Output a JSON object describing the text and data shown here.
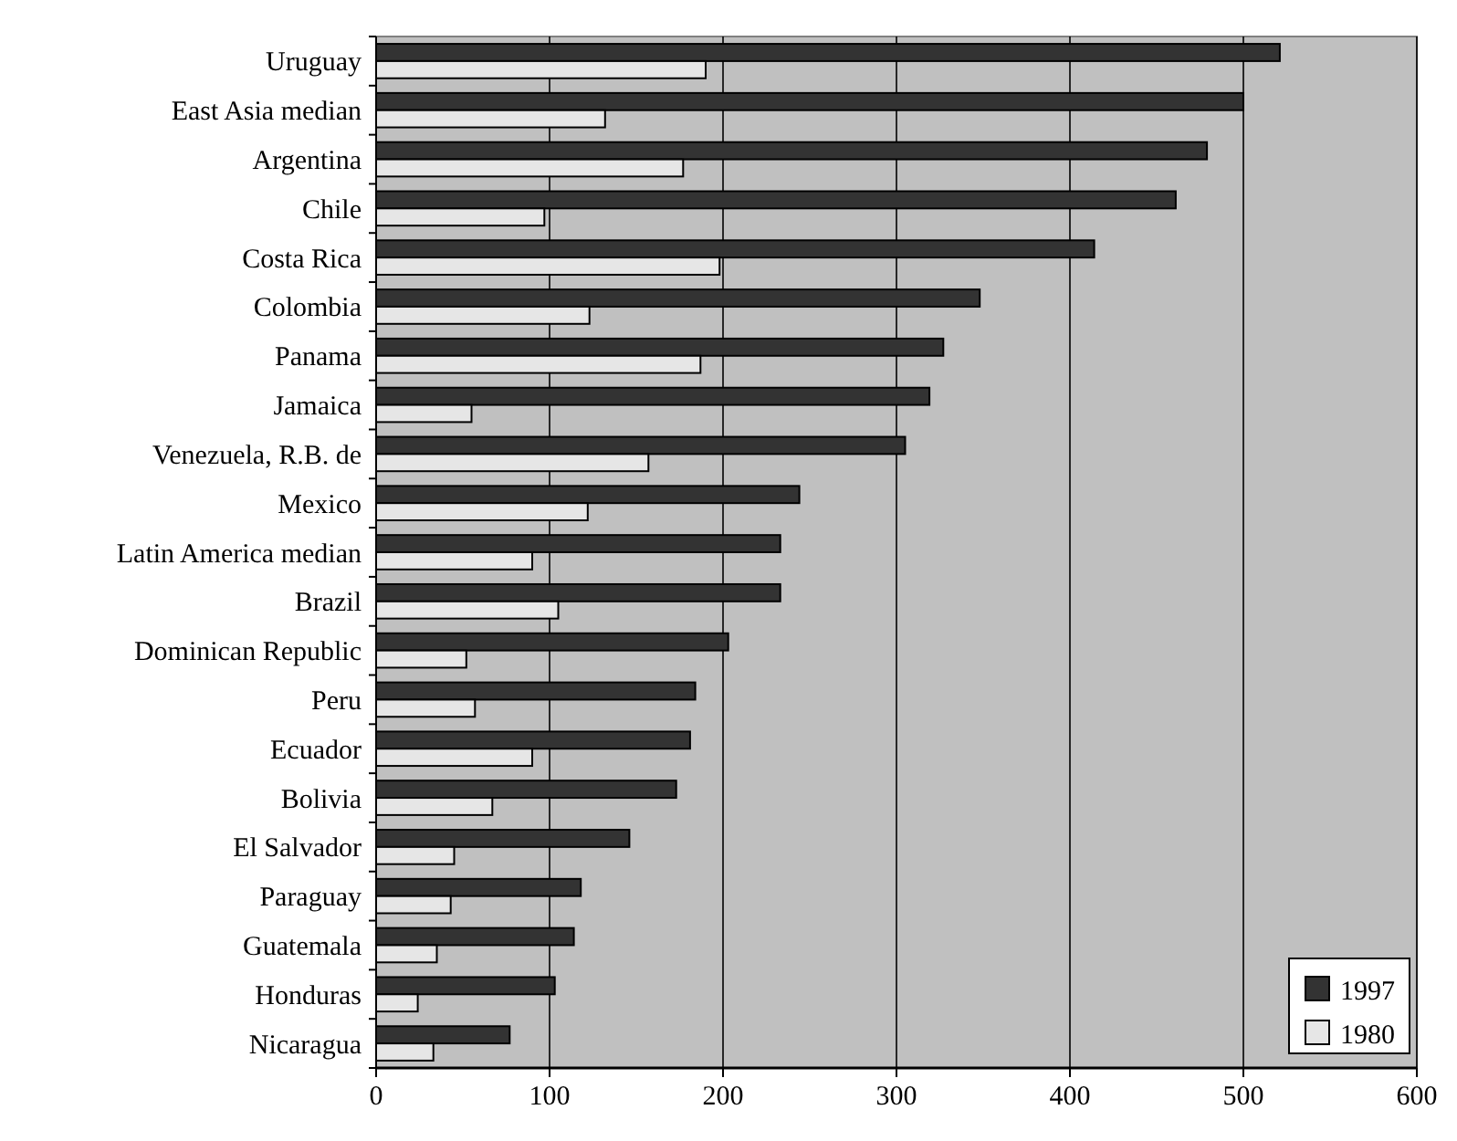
{
  "chart_data": {
    "type": "bar",
    "orientation": "horizontal",
    "categories": [
      "Uruguay",
      "East Asia median",
      "Argentina",
      "Chile",
      "Costa Rica",
      "Colombia",
      "Panama",
      "Jamaica",
      "Venezuela, R.B. de",
      "Mexico",
      "Latin America median",
      "Brazil",
      "Dominican Republic",
      "Peru",
      "Ecuador",
      "Bolivia",
      "El Salvador",
      "Paraguay",
      "Guatemala",
      "Honduras",
      "Nicaragua"
    ],
    "series": [
      {
        "name": "1997",
        "color": "#333333",
        "values": [
          521,
          500,
          479,
          461,
          414,
          348,
          327,
          319,
          305,
          244,
          233,
          233,
          203,
          184,
          181,
          173,
          146,
          118,
          114,
          103,
          77
        ]
      },
      {
        "name": "1980",
        "color": "#e6e6e6",
        "values": [
          190,
          132,
          177,
          97,
          198,
          123,
          187,
          55,
          157,
          122,
          90,
          105,
          52,
          57,
          90,
          67,
          45,
          43,
          35,
          24,
          33
        ]
      }
    ],
    "xlim": [
      0,
      600
    ],
    "xticks": [
      0,
      100,
      200,
      300,
      400,
      500,
      600
    ],
    "grid": "x",
    "legend": "bottom right"
  }
}
